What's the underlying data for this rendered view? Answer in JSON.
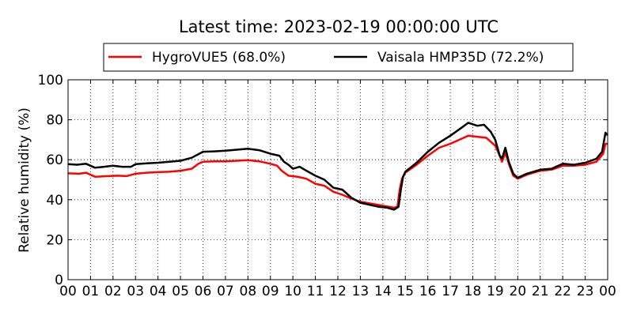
{
  "chart_data": {
    "type": "line",
    "title": "Latest time: 2023-02-19 00:00:00 UTC",
    "xlabel": "",
    "ylabel": "Relative humidity (%)",
    "xlim": [
      0,
      24
    ],
    "ylim": [
      0,
      100
    ],
    "grid": true,
    "legend_position": "top",
    "x_ticks": [
      "00",
      "01",
      "02",
      "03",
      "04",
      "05",
      "06",
      "07",
      "08",
      "09",
      "10",
      "11",
      "12",
      "13",
      "14",
      "15",
      "16",
      "17",
      "18",
      "19",
      "20",
      "21",
      "22",
      "23",
      "00"
    ],
    "y_ticks": [
      0,
      20,
      40,
      60,
      80,
      100
    ],
    "series": [
      {
        "name": "HygroVUE5 (68.0%)",
        "color": "#ff0000",
        "points": [
          [
            0.0,
            53.2
          ],
          [
            0.5,
            53.0
          ],
          [
            0.8,
            53.5
          ],
          [
            1.2,
            51.5
          ],
          [
            1.8,
            51.8
          ],
          [
            2.2,
            52.0
          ],
          [
            2.6,
            51.8
          ],
          [
            3.0,
            53.0
          ],
          [
            3.5,
            53.5
          ],
          [
            4.0,
            53.8
          ],
          [
            4.5,
            54.0
          ],
          [
            5.0,
            54.5
          ],
          [
            5.5,
            55.5
          ],
          [
            5.8,
            58.0
          ],
          [
            6.0,
            59.0
          ],
          [
            6.5,
            59.2
          ],
          [
            7.0,
            59.2
          ],
          [
            7.5,
            59.5
          ],
          [
            8.0,
            59.8
          ],
          [
            8.5,
            59.2
          ],
          [
            9.0,
            58.0
          ],
          [
            9.3,
            57.0
          ],
          [
            9.5,
            54.5
          ],
          [
            9.8,
            52.0
          ],
          [
            10.2,
            51.5
          ],
          [
            10.6,
            50.5
          ],
          [
            11.0,
            48.0
          ],
          [
            11.4,
            47.0
          ],
          [
            11.8,
            44.0
          ],
          [
            12.2,
            42.5
          ],
          [
            12.6,
            40.5
          ],
          [
            13.0,
            39.0
          ],
          [
            13.5,
            38.0
          ],
          [
            14.0,
            37.0
          ],
          [
            14.5,
            36.0
          ],
          [
            14.65,
            36.5
          ],
          [
            14.75,
            45.0
          ],
          [
            14.85,
            50.5
          ],
          [
            15.0,
            53.5
          ],
          [
            15.5,
            57.5
          ],
          [
            16.0,
            62.0
          ],
          [
            16.5,
            66.0
          ],
          [
            17.0,
            68.0
          ],
          [
            17.5,
            70.5
          ],
          [
            17.8,
            72.0
          ],
          [
            18.2,
            71.5
          ],
          [
            18.6,
            71.0
          ],
          [
            19.0,
            67.0
          ],
          [
            19.2,
            62.0
          ],
          [
            19.3,
            59.0
          ],
          [
            19.45,
            63.5
          ],
          [
            19.6,
            58.0
          ],
          [
            19.8,
            52.0
          ],
          [
            20.0,
            50.5
          ],
          [
            20.4,
            52.5
          ],
          [
            21.0,
            54.5
          ],
          [
            21.5,
            55.0
          ],
          [
            22.0,
            57.0
          ],
          [
            22.5,
            57.0
          ],
          [
            23.0,
            57.5
          ],
          [
            23.5,
            59.0
          ],
          [
            23.8,
            63.0
          ],
          [
            23.9,
            68.0
          ],
          [
            24.0,
            68.0
          ]
        ]
      },
      {
        "name": "Vaisala HMP35D (72.2%)",
        "color": "#000000",
        "points": [
          [
            0.0,
            57.8
          ],
          [
            0.4,
            57.5
          ],
          [
            0.8,
            58.0
          ],
          [
            1.2,
            56.0
          ],
          [
            1.6,
            56.5
          ],
          [
            2.0,
            57.0
          ],
          [
            2.4,
            56.5
          ],
          [
            2.8,
            56.5
          ],
          [
            3.0,
            57.8
          ],
          [
            3.5,
            58.2
          ],
          [
            4.0,
            58.5
          ],
          [
            4.5,
            59.0
          ],
          [
            5.0,
            59.5
          ],
          [
            5.5,
            61.0
          ],
          [
            6.0,
            64.0
          ],
          [
            6.5,
            64.2
          ],
          [
            7.0,
            64.5
          ],
          [
            7.5,
            65.0
          ],
          [
            8.0,
            65.5
          ],
          [
            8.5,
            64.8
          ],
          [
            9.0,
            63.0
          ],
          [
            9.4,
            62.0
          ],
          [
            9.6,
            59.0
          ],
          [
            9.8,
            57.5
          ],
          [
            10.0,
            55.5
          ],
          [
            10.3,
            56.5
          ],
          [
            10.6,
            54.5
          ],
          [
            11.0,
            52.0
          ],
          [
            11.4,
            50.0
          ],
          [
            11.8,
            46.0
          ],
          [
            12.2,
            45.0
          ],
          [
            12.6,
            41.0
          ],
          [
            13.0,
            38.5
          ],
          [
            13.4,
            37.5
          ],
          [
            13.8,
            36.5
          ],
          [
            14.2,
            36.0
          ],
          [
            14.5,
            35.0
          ],
          [
            14.7,
            36.5
          ],
          [
            14.8,
            45.0
          ],
          [
            14.9,
            51.5
          ],
          [
            15.0,
            54.0
          ],
          [
            15.5,
            58.5
          ],
          [
            16.0,
            64.0
          ],
          [
            16.5,
            68.5
          ],
          [
            17.0,
            72.0
          ],
          [
            17.5,
            76.0
          ],
          [
            17.8,
            78.5
          ],
          [
            18.2,
            77.0
          ],
          [
            18.5,
            77.5
          ],
          [
            18.8,
            74.0
          ],
          [
            19.0,
            70.0
          ],
          [
            19.2,
            62.0
          ],
          [
            19.3,
            60.5
          ],
          [
            19.45,
            66.0
          ],
          [
            19.6,
            59.0
          ],
          [
            19.8,
            53.0
          ],
          [
            20.0,
            51.0
          ],
          [
            20.4,
            53.0
          ],
          [
            21.0,
            55.0
          ],
          [
            21.5,
            55.5
          ],
          [
            22.0,
            58.0
          ],
          [
            22.5,
            57.5
          ],
          [
            23.0,
            58.5
          ],
          [
            23.5,
            60.5
          ],
          [
            23.75,
            64.0
          ],
          [
            23.9,
            73.5
          ],
          [
            24.0,
            72.2
          ]
        ]
      }
    ]
  }
}
